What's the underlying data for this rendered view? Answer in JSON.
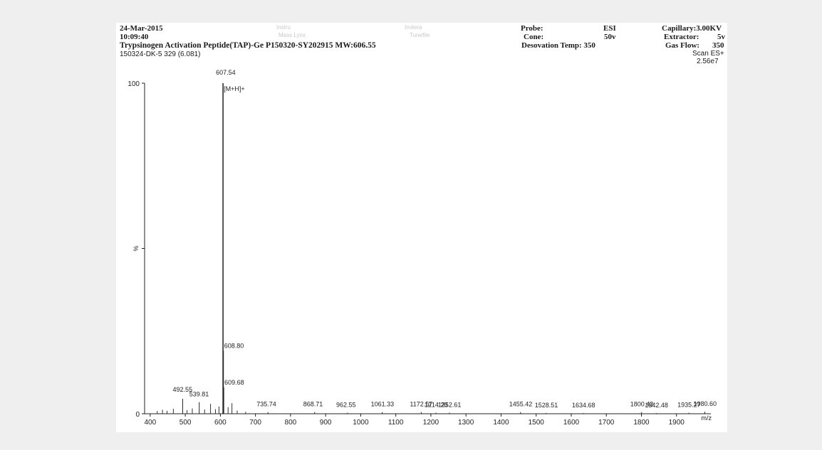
{
  "header": {
    "date": "24-Mar-2015",
    "time": "10:09:40",
    "title_line": "Trypsinogen Activation Peptide(TAP)-Ge  P150320-SY202915  MW:606.55",
    "sample_line": "150324-DK-5 329 (6.081)",
    "faint_top_1": "Instru",
    "faint_top_2": "Invtera",
    "faint_mid_1": "Mass Lynx",
    "faint_mid_2": "Tunefile",
    "probe_label": "Probe:",
    "probe_value": "ESI",
    "cone_label": "Cone:",
    "cone_value": "50v",
    "desolvation_label": "Desovation  Temp: 350",
    "capillary_label": "Capillary:3.00KV",
    "extractor_label": "Extractor:",
    "extractor_value": "5v",
    "gasflow_label": "Gas Flow:",
    "gasflow_value": "350",
    "scan_label": "Scan ES+",
    "intensity_label": "2.56e7"
  },
  "chart_data": {
    "type": "bar",
    "title": "",
    "xlabel": "m/z",
    "ylabel": "%",
    "xlim": [
      380,
      2000
    ],
    "ylim": [
      0,
      100
    ],
    "y_ticks": [
      0,
      100
    ],
    "x_ticks": [
      400,
      500,
      600,
      700,
      800,
      900,
      1000,
      1100,
      1200,
      1300,
      1400,
      1500,
      1600,
      1700,
      1800,
      1900
    ],
    "base_peak_annotation": "[M+H]+",
    "peaks": [
      {
        "mz": 492.55,
        "intensity": 4.5,
        "label": "492.55"
      },
      {
        "mz": 539.81,
        "intensity": 3.5,
        "label": "539.81"
      },
      {
        "mz": 607.54,
        "intensity": 100,
        "label": "607.54"
      },
      {
        "mz": 608.8,
        "intensity": 19,
        "label": "608.80"
      },
      {
        "mz": 609.68,
        "intensity": 8,
        "label": "609.68"
      },
      {
        "mz": 735.74,
        "intensity": 0.5,
        "label": "735.74"
      },
      {
        "mz": 868.71,
        "intensity": 0.5,
        "label": "868.71"
      },
      {
        "mz": 962.55,
        "intensity": 0.3,
        "label": "962.55"
      },
      {
        "mz": 1061.33,
        "intensity": 0.5,
        "label": "1061.33"
      },
      {
        "mz": 1172.57,
        "intensity": 0.5,
        "label": "1172.57"
      },
      {
        "mz": 1214.2,
        "intensity": 0.3,
        "label": "1214.20"
      },
      {
        "mz": 1252.61,
        "intensity": 0.3,
        "label": "1252.61"
      },
      {
        "mz": 1455.42,
        "intensity": 0.5,
        "label": "1455.42"
      },
      {
        "mz": 1528.51,
        "intensity": 0.2,
        "label": "1528.51"
      },
      {
        "mz": 1634.68,
        "intensity": 0.2,
        "label": "1634.68"
      },
      {
        "mz": 1800.43,
        "intensity": 0.5,
        "label": "1800.43"
      },
      {
        "mz": 1842.48,
        "intensity": 0.2,
        "label": "1842.48"
      },
      {
        "mz": 1935.27,
        "intensity": 0.3,
        "label": "1935.27"
      },
      {
        "mz": 1980.6,
        "intensity": 0.6,
        "label": "1980.60"
      }
    ],
    "minor_peaks": [
      {
        "mz": 420,
        "intensity": 0.8
      },
      {
        "mz": 435,
        "intensity": 1.2
      },
      {
        "mz": 448,
        "intensity": 0.9
      },
      {
        "mz": 466,
        "intensity": 1.5
      },
      {
        "mz": 505,
        "intensity": 1.1
      },
      {
        "mz": 520,
        "intensity": 1.6
      },
      {
        "mz": 555,
        "intensity": 1.3
      },
      {
        "mz": 572,
        "intensity": 3.0
      },
      {
        "mz": 586,
        "intensity": 1.4
      },
      {
        "mz": 596,
        "intensity": 2.2
      },
      {
        "mz": 622,
        "intensity": 2.0
      },
      {
        "mz": 633,
        "intensity": 3.2
      },
      {
        "mz": 648,
        "intensity": 1.0
      },
      {
        "mz": 672,
        "intensity": 0.6
      }
    ]
  }
}
